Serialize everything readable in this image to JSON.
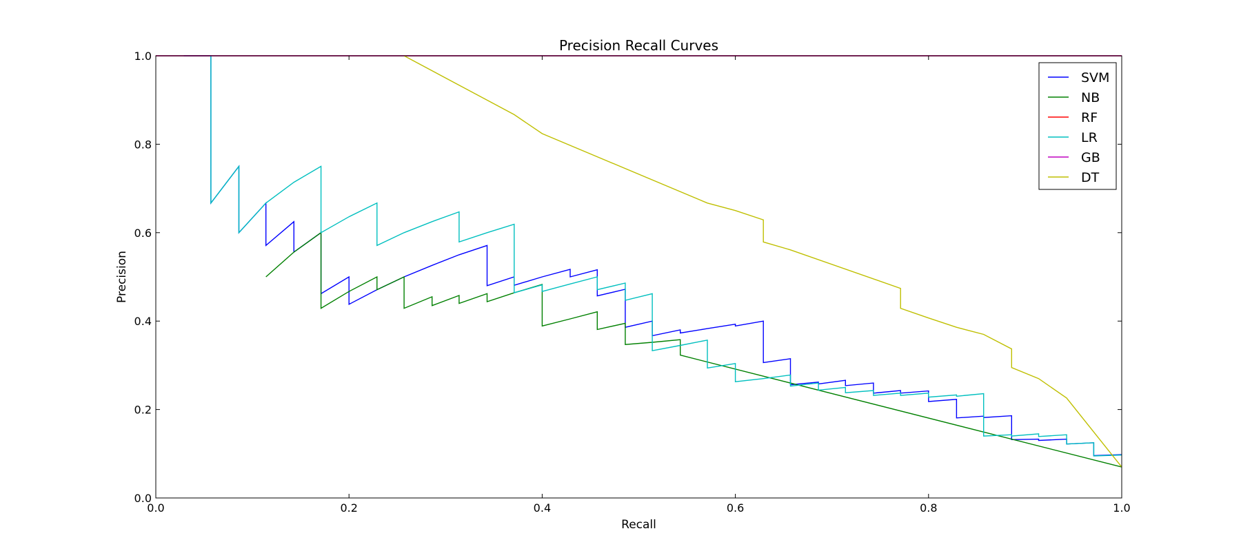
{
  "chart_data": {
    "type": "line",
    "title": "Precision Recall Curves",
    "xlabel": "Recall",
    "ylabel": "Precision",
    "xlim": [
      0.0,
      1.0
    ],
    "ylim": [
      0.0,
      1.0
    ],
    "xticks": [
      "0.0",
      "0.2",
      "0.4",
      "0.6",
      "0.8",
      "1.0"
    ],
    "yticks": [
      "0.0",
      "0.2",
      "0.4",
      "0.6",
      "0.8",
      "1.0"
    ],
    "grid": false,
    "legend": "top-right",
    "series": [
      {
        "name": "SVM",
        "color": "#0000ff",
        "points": [
          [
            0.029,
            1.0
          ],
          [
            0.057,
            1.0
          ],
          [
            0.057,
            0.667
          ],
          [
            0.086,
            0.75
          ],
          [
            0.086,
            0.6
          ],
          [
            0.114,
            0.667
          ],
          [
            0.114,
            0.571
          ],
          [
            0.143,
            0.625
          ],
          [
            0.143,
            0.556
          ],
          [
            0.171,
            0.6
          ],
          [
            0.171,
            0.462
          ],
          [
            0.2,
            0.5
          ],
          [
            0.2,
            0.438
          ],
          [
            0.229,
            0.471
          ],
          [
            0.257,
            0.5
          ],
          [
            0.286,
            0.526
          ],
          [
            0.314,
            0.55
          ],
          [
            0.343,
            0.571
          ],
          [
            0.343,
            0.48
          ],
          [
            0.371,
            0.5
          ],
          [
            0.371,
            0.481
          ],
          [
            0.4,
            0.5
          ],
          [
            0.429,
            0.517
          ],
          [
            0.429,
            0.5
          ],
          [
            0.457,
            0.516
          ],
          [
            0.457,
            0.457
          ],
          [
            0.486,
            0.472
          ],
          [
            0.486,
            0.386
          ],
          [
            0.514,
            0.4
          ],
          [
            0.514,
            0.367
          ],
          [
            0.543,
            0.38
          ],
          [
            0.543,
            0.373
          ],
          [
            0.571,
            0.383
          ],
          [
            0.6,
            0.393
          ],
          [
            0.6,
            0.389
          ],
          [
            0.629,
            0.4
          ],
          [
            0.629,
            0.306
          ],
          [
            0.657,
            0.315
          ],
          [
            0.657,
            0.256
          ],
          [
            0.686,
            0.262
          ],
          [
            0.686,
            0.258
          ],
          [
            0.714,
            0.266
          ],
          [
            0.714,
            0.254
          ],
          [
            0.743,
            0.26
          ],
          [
            0.743,
            0.237
          ],
          [
            0.771,
            0.243
          ],
          [
            0.771,
            0.237
          ],
          [
            0.8,
            0.242
          ],
          [
            0.8,
            0.218
          ],
          [
            0.829,
            0.223
          ],
          [
            0.829,
            0.181
          ],
          [
            0.857,
            0.185
          ],
          [
            0.857,
            0.182
          ],
          [
            0.886,
            0.186
          ],
          [
            0.886,
            0.132
          ],
          [
            0.914,
            0.133
          ],
          [
            0.914,
            0.13
          ],
          [
            0.943,
            0.133
          ],
          [
            0.943,
            0.122
          ],
          [
            0.971,
            0.125
          ],
          [
            0.971,
            0.096
          ],
          [
            1.0,
            0.098
          ]
        ]
      },
      {
        "name": "NB",
        "color": "#008000",
        "points": [
          [
            0.114,
            0.5
          ],
          [
            0.143,
            0.556
          ],
          [
            0.171,
            0.6
          ],
          [
            0.171,
            0.429
          ],
          [
            0.2,
            0.467
          ],
          [
            0.229,
            0.5
          ],
          [
            0.229,
            0.471
          ],
          [
            0.257,
            0.5
          ],
          [
            0.257,
            0.429
          ],
          [
            0.286,
            0.455
          ],
          [
            0.286,
            0.435
          ],
          [
            0.314,
            0.458
          ],
          [
            0.314,
            0.44
          ],
          [
            0.343,
            0.462
          ],
          [
            0.343,
            0.444
          ],
          [
            0.371,
            0.464
          ],
          [
            0.4,
            0.483
          ],
          [
            0.4,
            0.389
          ],
          [
            0.429,
            0.405
          ],
          [
            0.457,
            0.421
          ],
          [
            0.457,
            0.381
          ],
          [
            0.486,
            0.395
          ],
          [
            0.486,
            0.347
          ],
          [
            0.514,
            0.352
          ],
          [
            0.543,
            0.358
          ],
          [
            0.543,
            0.323
          ],
          [
            1.0,
            0.07
          ]
        ]
      },
      {
        "name": "RF",
        "color": "#ff0000",
        "points": [
          [
            0.0,
            1.0
          ],
          [
            1.0,
            1.0
          ]
        ]
      },
      {
        "name": "LR",
        "color": "#00bfbf",
        "points": [
          [
            0.057,
            1.0
          ],
          [
            0.057,
            0.667
          ],
          [
            0.086,
            0.75
          ],
          [
            0.086,
            0.6
          ],
          [
            0.114,
            0.667
          ],
          [
            0.143,
            0.714
          ],
          [
            0.171,
            0.75
          ],
          [
            0.171,
            0.6
          ],
          [
            0.2,
            0.636
          ],
          [
            0.229,
            0.667
          ],
          [
            0.229,
            0.571
          ],
          [
            0.257,
            0.6
          ],
          [
            0.286,
            0.625
          ],
          [
            0.314,
            0.647
          ],
          [
            0.314,
            0.579
          ],
          [
            0.343,
            0.6
          ],
          [
            0.371,
            0.619
          ],
          [
            0.371,
            0.464
          ],
          [
            0.4,
            0.482
          ],
          [
            0.4,
            0.467
          ],
          [
            0.429,
            0.484
          ],
          [
            0.457,
            0.5
          ],
          [
            0.457,
            0.471
          ],
          [
            0.486,
            0.486
          ],
          [
            0.486,
            0.447
          ],
          [
            0.514,
            0.462
          ],
          [
            0.514,
            0.333
          ],
          [
            0.543,
            0.345
          ],
          [
            0.571,
            0.357
          ],
          [
            0.571,
            0.294
          ],
          [
            0.6,
            0.304
          ],
          [
            0.6,
            0.263
          ],
          [
            0.629,
            0.27
          ],
          [
            0.657,
            0.278
          ],
          [
            0.657,
            0.253
          ],
          [
            0.686,
            0.26
          ],
          [
            0.686,
            0.244
          ],
          [
            0.714,
            0.25
          ],
          [
            0.714,
            0.238
          ],
          [
            0.743,
            0.243
          ],
          [
            0.743,
            0.232
          ],
          [
            0.771,
            0.237
          ],
          [
            0.771,
            0.232
          ],
          [
            0.8,
            0.237
          ],
          [
            0.8,
            0.228
          ],
          [
            0.829,
            0.233
          ],
          [
            0.829,
            0.23
          ],
          [
            0.857,
            0.236
          ],
          [
            0.857,
            0.14
          ],
          [
            0.886,
            0.143
          ],
          [
            0.886,
            0.14
          ],
          [
            0.914,
            0.145
          ],
          [
            0.914,
            0.139
          ],
          [
            0.943,
            0.143
          ],
          [
            0.943,
            0.122
          ],
          [
            0.971,
            0.125
          ],
          [
            0.971,
            0.095
          ],
          [
            1.0,
            0.097
          ]
        ]
      },
      {
        "name": "GB",
        "color": "#bf00bf",
        "points": [
          [
            0.0,
            1.0
          ],
          [
            1.0,
            1.0
          ]
        ]
      },
      {
        "name": "DT",
        "color": "#bfbf00",
        "points": [
          [
            0.257,
            1.0
          ],
          [
            0.371,
            0.867
          ],
          [
            0.4,
            0.824
          ],
          [
            0.571,
            0.667
          ],
          [
            0.6,
            0.65
          ],
          [
            0.629,
            0.629
          ],
          [
            0.629,
            0.579
          ],
          [
            0.657,
            0.561
          ],
          [
            0.771,
            0.474
          ],
          [
            0.771,
            0.429
          ],
          [
            0.8,
            0.407
          ],
          [
            0.829,
            0.386
          ],
          [
            0.857,
            0.37
          ],
          [
            0.886,
            0.337
          ],
          [
            0.886,
            0.295
          ],
          [
            0.914,
            0.27
          ],
          [
            0.943,
            0.226
          ],
          [
            1.0,
            0.07
          ]
        ]
      }
    ]
  }
}
